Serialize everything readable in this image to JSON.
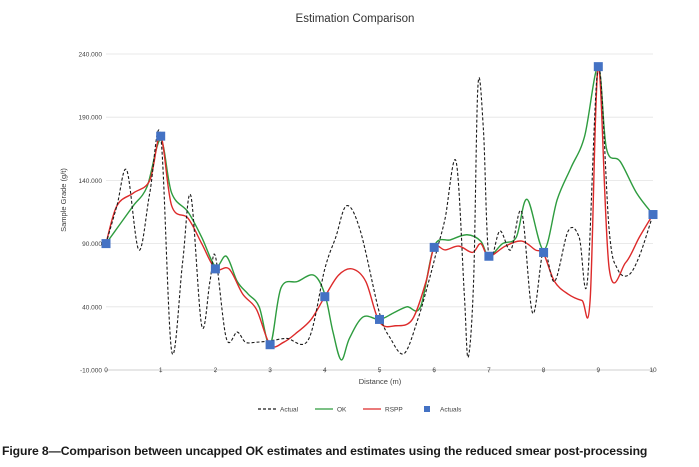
{
  "caption": "Figure 8—Comparison between uncapped OK estimates and estimates using the reduced smear post-processing",
  "chart_data": {
    "type": "line",
    "title": "Estimation Comparison",
    "xlabel": "Distance (m)",
    "ylabel": "Sample Grade (g/t)",
    "xlim": [
      0,
      10
    ],
    "ylim": [
      -10,
      240
    ],
    "xticks": [
      "0",
      "1",
      "2",
      "3",
      "4",
      "5",
      "6",
      "7",
      "8",
      "9",
      "10"
    ],
    "yticks": [
      {
        "value": -10,
        "label": "-10.000"
      },
      {
        "value": 40,
        "label": "40.000"
      },
      {
        "value": 90,
        "label": "90.000"
      },
      {
        "value": 140,
        "label": "140.000"
      },
      {
        "value": 190,
        "label": "190.000"
      },
      {
        "value": 240,
        "label": "240.000"
      }
    ],
    "grid": "horizontal",
    "legend_position": "bottom",
    "series": [
      {
        "name": "Actual",
        "style": "dashed",
        "color": "#1a1a1a",
        "points": [
          [
            0,
            90
          ],
          [
            0.2,
            120
          ],
          [
            0.38,
            148
          ],
          [
            0.6,
            85
          ],
          [
            0.8,
            130
          ],
          [
            1.0,
            175
          ],
          [
            1.2,
            5
          ],
          [
            1.4,
            75
          ],
          [
            1.55,
            128
          ],
          [
            1.75,
            25
          ],
          [
            1.9,
            60
          ],
          [
            2.0,
            80
          ],
          [
            2.2,
            15
          ],
          [
            2.4,
            20
          ],
          [
            2.55,
            12
          ],
          [
            2.75,
            12
          ],
          [
            3.0,
            13
          ],
          [
            3.3,
            15
          ],
          [
            3.7,
            14
          ],
          [
            4.0,
            70
          ],
          [
            4.2,
            95
          ],
          [
            4.4,
            120
          ],
          [
            4.65,
            100
          ],
          [
            5.0,
            35
          ],
          [
            5.2,
            15
          ],
          [
            5.45,
            3
          ],
          [
            5.7,
            30
          ],
          [
            5.9,
            60
          ],
          [
            6.05,
            85
          ],
          [
            6.2,
            110
          ],
          [
            6.4,
            155
          ],
          [
            6.55,
            50
          ],
          [
            6.62,
            0
          ],
          [
            6.72,
            60
          ],
          [
            6.8,
            215
          ],
          [
            6.9,
            180
          ],
          [
            7.0,
            80
          ],
          [
            7.2,
            100
          ],
          [
            7.4,
            85
          ],
          [
            7.6,
            115
          ],
          [
            7.8,
            35
          ],
          [
            8.0,
            85
          ],
          [
            8.2,
            60
          ],
          [
            8.45,
            100
          ],
          [
            8.65,
            95
          ],
          [
            8.8,
            60
          ],
          [
            9.0,
            230
          ],
          [
            9.2,
            100
          ],
          [
            9.35,
            70
          ],
          [
            9.55,
            65
          ],
          [
            9.75,
            80
          ],
          [
            10.0,
            113
          ]
        ]
      },
      {
        "name": "OK",
        "style": "solid",
        "color": "#2e9c3f",
        "points": [
          [
            0,
            90
          ],
          [
            0.25,
            105
          ],
          [
            0.5,
            120
          ],
          [
            0.75,
            135
          ],
          [
            1.0,
            172
          ],
          [
            1.2,
            130
          ],
          [
            1.5,
            115
          ],
          [
            1.75,
            95
          ],
          [
            2.0,
            72
          ],
          [
            2.2,
            80
          ],
          [
            2.4,
            60
          ],
          [
            2.6,
            50
          ],
          [
            2.8,
            40
          ],
          [
            3.0,
            10
          ],
          [
            3.2,
            55
          ],
          [
            3.5,
            60
          ],
          [
            3.8,
            65
          ],
          [
            4.0,
            50
          ],
          [
            4.15,
            20
          ],
          [
            4.3,
            -2
          ],
          [
            4.45,
            15
          ],
          [
            4.7,
            32
          ],
          [
            5.0,
            30
          ],
          [
            5.25,
            35
          ],
          [
            5.5,
            40
          ],
          [
            5.75,
            40
          ],
          [
            6.0,
            88
          ],
          [
            6.3,
            93
          ],
          [
            6.6,
            97
          ],
          [
            6.85,
            92
          ],
          [
            7.0,
            80
          ],
          [
            7.25,
            90
          ],
          [
            7.5,
            95
          ],
          [
            7.7,
            125
          ],
          [
            8.0,
            85
          ],
          [
            8.25,
            125
          ],
          [
            8.5,
            150
          ],
          [
            8.75,
            175
          ],
          [
            9.0,
            230
          ],
          [
            9.15,
            165
          ],
          [
            9.4,
            155
          ],
          [
            9.7,
            130
          ],
          [
            10.0,
            113
          ]
        ]
      },
      {
        "name": "RSPP",
        "style": "solid",
        "color": "#dd2a2a",
        "points": [
          [
            0,
            90
          ],
          [
            0.2,
            120
          ],
          [
            0.5,
            130
          ],
          [
            0.8,
            140
          ],
          [
            1.0,
            175
          ],
          [
            1.2,
            120
          ],
          [
            1.5,
            110
          ],
          [
            1.75,
            90
          ],
          [
            2.0,
            70
          ],
          [
            2.25,
            70
          ],
          [
            2.5,
            50
          ],
          [
            2.75,
            38
          ],
          [
            3.0,
            10
          ],
          [
            3.25,
            12
          ],
          [
            3.5,
            20
          ],
          [
            3.75,
            30
          ],
          [
            4.0,
            48
          ],
          [
            4.25,
            65
          ],
          [
            4.5,
            70
          ],
          [
            4.75,
            60
          ],
          [
            5.0,
            28
          ],
          [
            5.3,
            25
          ],
          [
            5.6,
            30
          ],
          [
            5.85,
            60
          ],
          [
            6.0,
            87
          ],
          [
            6.2,
            85
          ],
          [
            6.45,
            88
          ],
          [
            6.7,
            83
          ],
          [
            6.85,
            90
          ],
          [
            7.0,
            80
          ],
          [
            7.3,
            88
          ],
          [
            7.6,
            92
          ],
          [
            7.85,
            85
          ],
          [
            8.0,
            82
          ],
          [
            8.2,
            60
          ],
          [
            8.45,
            50
          ],
          [
            8.7,
            45
          ],
          [
            8.85,
            45
          ],
          [
            9.0,
            230
          ],
          [
            9.2,
            70
          ],
          [
            9.5,
            75
          ],
          [
            9.75,
            95
          ],
          [
            10.0,
            113
          ]
        ]
      },
      {
        "name": "Actuals",
        "style": "marker",
        "color": "#4472c4",
        "points": [
          [
            0,
            90
          ],
          [
            1,
            175
          ],
          [
            2,
            70
          ],
          [
            3,
            10
          ],
          [
            4,
            48
          ],
          [
            5,
            30
          ],
          [
            6,
            87
          ],
          [
            7,
            80
          ],
          [
            8,
            83
          ],
          [
            9,
            230
          ],
          [
            10,
            113
          ]
        ]
      }
    ]
  }
}
